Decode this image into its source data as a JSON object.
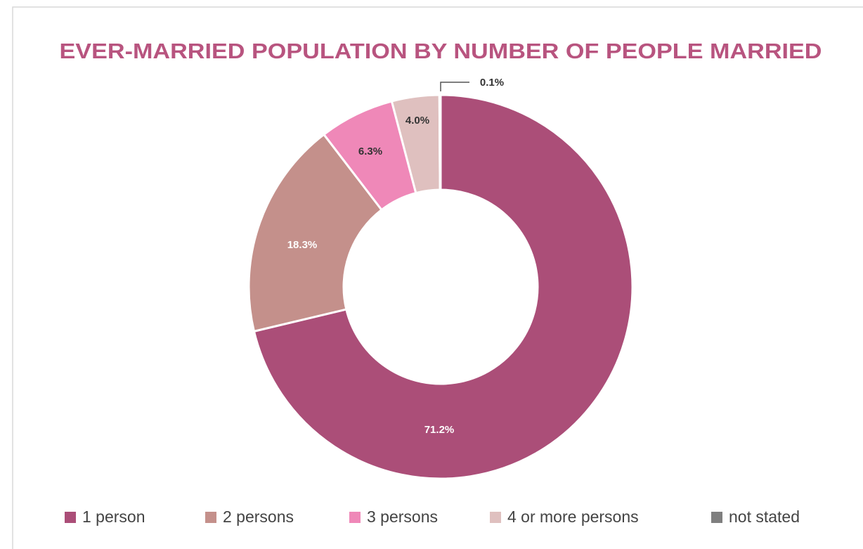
{
  "chart_data": {
    "type": "donut",
    "title": "EVER-MARRIED POPULATION BY NUMBER OF PEOPLE MARRIED",
    "categories": [
      "1 person",
      "2 persons",
      "3 persons",
      "4 or more persons",
      "not stated"
    ],
    "values": [
      71.2,
      18.3,
      6.3,
      4.0,
      0.1
    ],
    "value_labels": [
      "71.2%",
      "18.3%",
      "6.3%",
      "4.0%",
      "0.1%"
    ],
    "colors": [
      "#ab4e78",
      "#c4908b",
      "#ef88b8",
      "#dfc0bf",
      "#7f7f7f"
    ],
    "legend": "bottom"
  }
}
